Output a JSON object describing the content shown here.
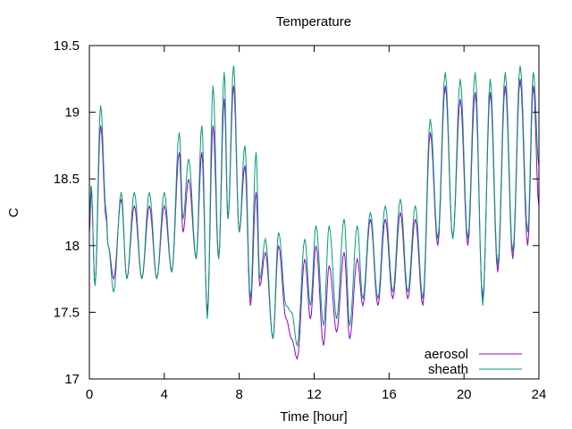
{
  "chart_data": {
    "type": "line",
    "title": "Temperature",
    "xlabel": "Time [hour]",
    "ylabel": "C",
    "xlim": [
      0,
      24
    ],
    "ylim": [
      17,
      19.5
    ],
    "xticks": [
      0,
      4,
      8,
      12,
      16,
      20,
      24
    ],
    "yticks": [
      17,
      17.5,
      18,
      18.5,
      19,
      19.5
    ],
    "ytick_labels": [
      "17",
      "17.5",
      "18",
      "18.5",
      "19",
      "19.5"
    ],
    "grid": false,
    "legend_position": "bottom-right",
    "series": [
      {
        "name": "aerosol",
        "color": "#9400d3",
        "x": [
          0,
          0.1,
          0.3,
          0.6,
          0.9,
          1.0,
          1.3,
          1.7,
          2.0,
          2.4,
          2.8,
          3.2,
          3.6,
          4.0,
          4.4,
          4.8,
          5.0,
          5.3,
          5.7,
          6.0,
          6.3,
          6.6,
          6.9,
          7.2,
          7.4,
          7.7,
          8.0,
          8.3,
          8.6,
          8.9,
          9.1,
          9.4,
          9.8,
          10.1,
          10.5,
          10.8,
          11.1,
          11.5,
          11.8,
          12.1,
          12.5,
          12.8,
          13.2,
          13.6,
          13.9,
          14.3,
          14.6,
          15.0,
          15.4,
          15.8,
          16.2,
          16.6,
          17.0,
          17.4,
          17.8,
          18.2,
          18.6,
          19.0,
          19.4,
          19.8,
          20.2,
          20.6,
          21.0,
          21.4,
          21.8,
          22.2,
          22.6,
          23.0,
          23.4,
          23.7,
          24.0
        ],
        "y": [
          18.1,
          18.4,
          17.7,
          18.9,
          18.2,
          18.0,
          17.75,
          18.35,
          17.75,
          18.3,
          17.75,
          18.3,
          17.75,
          18.3,
          17.8,
          18.7,
          18.1,
          18.5,
          17.9,
          18.7,
          17.5,
          18.9,
          17.9,
          19.1,
          18.2,
          19.2,
          18.1,
          18.6,
          17.55,
          18.4,
          17.7,
          17.95,
          17.3,
          18.0,
          17.45,
          17.3,
          17.15,
          17.9,
          17.45,
          18.0,
          17.25,
          17.85,
          17.35,
          17.95,
          17.3,
          17.9,
          17.55,
          18.2,
          17.55,
          18.2,
          17.6,
          18.25,
          17.6,
          18.2,
          17.55,
          18.85,
          18.0,
          19.2,
          18.05,
          19.1,
          18.0,
          19.15,
          17.6,
          19.15,
          17.8,
          19.2,
          17.9,
          19.25,
          18.0,
          19.2,
          18.3
        ],
        "smooth": true
      },
      {
        "name": "sheath",
        "color": "#009e73",
        "x": [
          0,
          0.1,
          0.3,
          0.6,
          0.9,
          1.0,
          1.3,
          1.7,
          2.0,
          2.4,
          2.8,
          3.2,
          3.6,
          4.0,
          4.4,
          4.8,
          5.0,
          5.3,
          5.7,
          6.0,
          6.3,
          6.6,
          6.9,
          7.2,
          7.4,
          7.7,
          8.0,
          8.3,
          8.6,
          8.9,
          9.1,
          9.4,
          9.8,
          10.1,
          10.5,
          10.8,
          11.1,
          11.5,
          11.8,
          12.1,
          12.5,
          12.8,
          13.2,
          13.6,
          13.9,
          14.3,
          14.6,
          15.0,
          15.4,
          15.8,
          16.2,
          16.6,
          17.0,
          17.4,
          17.8,
          18.2,
          18.6,
          19.0,
          19.4,
          19.8,
          20.2,
          20.6,
          21.0,
          21.4,
          21.8,
          22.2,
          22.6,
          23.0,
          23.4,
          23.7,
          24.0
        ],
        "y": [
          18.2,
          18.45,
          17.7,
          19.05,
          18.25,
          18.0,
          17.65,
          18.4,
          17.75,
          18.4,
          17.75,
          18.4,
          17.75,
          18.4,
          17.8,
          18.85,
          18.2,
          18.65,
          17.9,
          18.9,
          17.45,
          19.2,
          17.9,
          19.3,
          18.2,
          19.35,
          18.1,
          18.75,
          17.6,
          18.7,
          17.75,
          18.05,
          17.3,
          18.1,
          17.55,
          17.5,
          17.25,
          18.05,
          17.55,
          18.15,
          17.4,
          18.15,
          17.45,
          18.2,
          17.4,
          18.15,
          17.6,
          18.25,
          17.6,
          18.3,
          17.65,
          18.35,
          17.65,
          18.3,
          17.6,
          18.95,
          18.05,
          19.3,
          18.05,
          19.25,
          18.05,
          19.3,
          17.55,
          19.25,
          17.85,
          19.3,
          17.95,
          19.35,
          18.1,
          19.3,
          18.6
        ],
        "smooth": true
      }
    ]
  }
}
